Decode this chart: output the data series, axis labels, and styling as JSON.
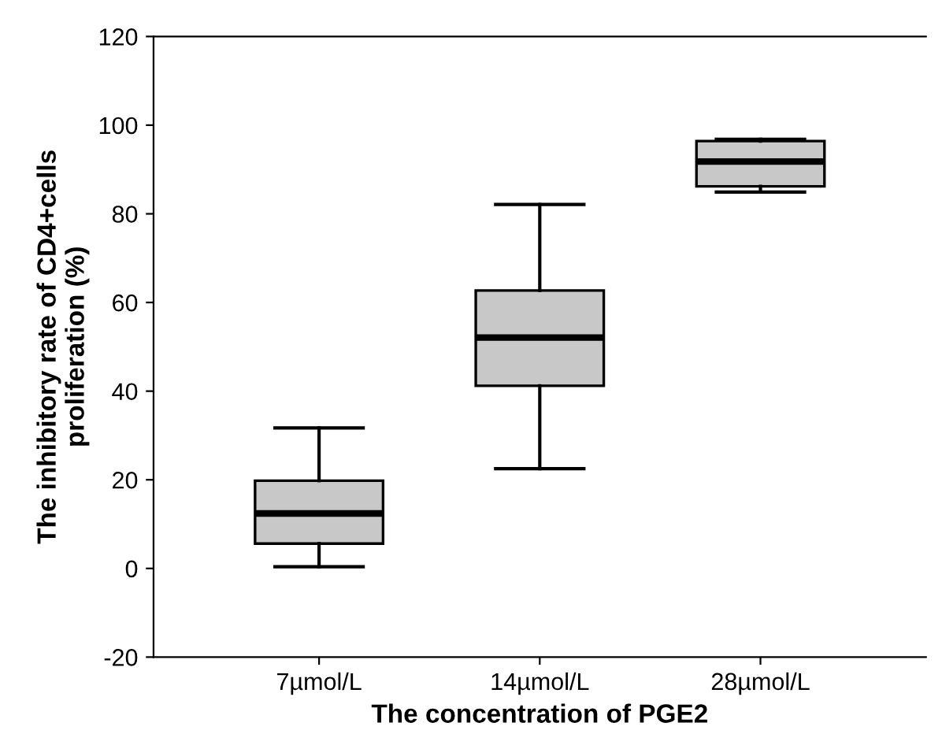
{
  "chart_data": {
    "type": "box",
    "xlabel": "The concentration of PGE2",
    "ylabel": "The inhibitory rate of CD4+cells\nproliferation (%)",
    "categories": [
      "7µmol/L",
      "14µmol/L",
      "28µmol/L"
    ],
    "boxes": [
      {
        "low": 0.4,
        "q1": 5.6,
        "median": 12.4,
        "q3": 19.8,
        "high": 31.7
      },
      {
        "low": 22.5,
        "q1": 41.2,
        "median": 52.1,
        "q3": 62.7,
        "high": 82.1
      },
      {
        "low": 84.9,
        "q1": 86.2,
        "median": 91.8,
        "q3": 96.4,
        "high": 96.8
      }
    ],
    "color": "#c8c8c8",
    "ylim": [
      -20,
      120
    ],
    "yticks": [
      -20,
      0,
      20,
      40,
      60,
      80,
      100,
      120
    ],
    "grid": false
  }
}
